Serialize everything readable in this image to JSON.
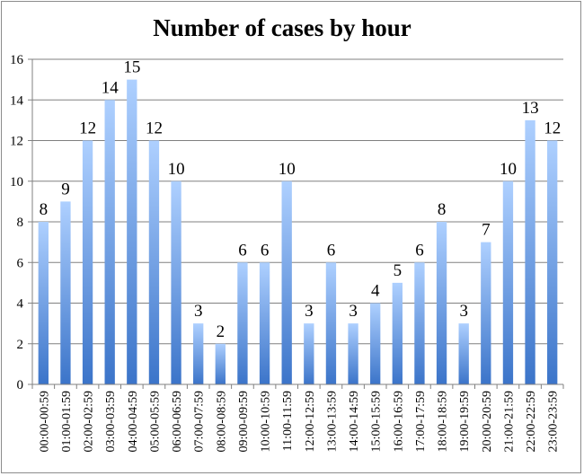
{
  "chart_data": {
    "type": "bar",
    "title": "Number of cases by hour",
    "xlabel": "",
    "ylabel": "",
    "ylim": [
      0,
      16
    ],
    "yticks": [
      0,
      2,
      4,
      6,
      8,
      10,
      12,
      14,
      16
    ],
    "grid": true,
    "legend": "none",
    "categories": [
      "00:00-00:59",
      "01:00-01:59",
      "02:00-02:59",
      "03:00-03:59",
      "04:00-04:59",
      "05:00-05:59",
      "06:00-06:59",
      "07:00-07:59",
      "08:00-08:59",
      "09:00-09:59",
      "10:00-10:59",
      "11:00-11:59",
      "12:00-12:59",
      "13:00-13:59",
      "14:00-14:59",
      "15:00-15:59",
      "16:00-16:59",
      "17:00-17:59",
      "18:00-18:59",
      "19:00-19:59",
      "20:00-20:59",
      "21:00-21:59",
      "22:00-22:59",
      "23:00-23:59"
    ],
    "values": [
      8,
      9,
      12,
      14,
      15,
      12,
      10,
      3,
      2,
      6,
      6,
      10,
      3,
      6,
      3,
      4,
      5,
      6,
      8,
      3,
      7,
      10,
      13,
      12
    ],
    "colors": {
      "bar_top": "#aed0ff",
      "bar_bottom": "#3b74c9",
      "grid": "#808080",
      "axis": "#808080"
    }
  }
}
